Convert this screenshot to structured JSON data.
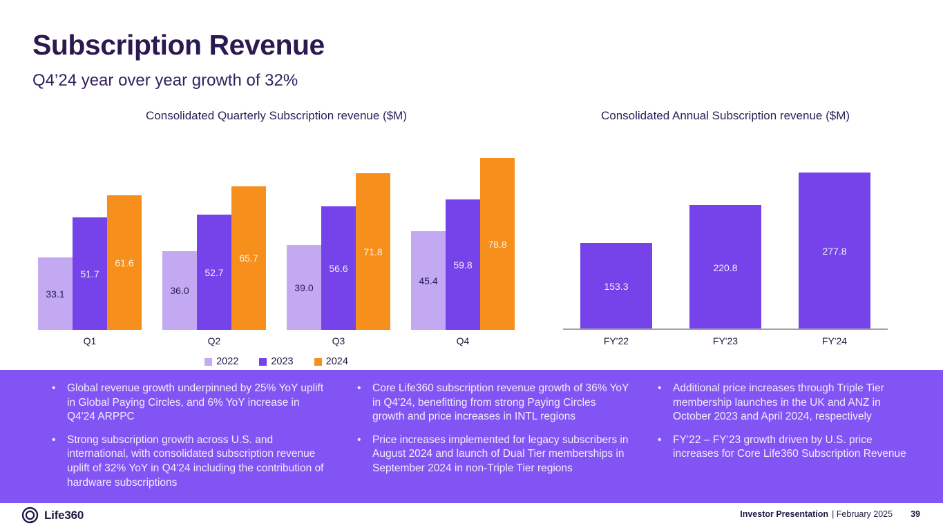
{
  "slide": {
    "title": "Subscription Revenue",
    "subtitle": "Q4’24 year over year growth of 32%"
  },
  "colors": {
    "heading_text": "#2b1a4f",
    "bar_2022": "#c3a9f1",
    "bar_2023": "#7543e9",
    "bar_2024": "#f78f1d",
    "annual_bar": "#7543e9",
    "band_background": "#8254f4",
    "band_text": "#f2ecfd",
    "axis_line": "#a3a2a8"
  },
  "chart_data": [
    {
      "type": "bar",
      "title": "Consolidated Quarterly Subscription revenue ($M)",
      "categories": [
        "Q1",
        "Q2",
        "Q3",
        "Q4"
      ],
      "series": [
        {
          "name": "2022",
          "values": [
            33.1,
            36.0,
            39.0,
            45.4
          ],
          "color": "#c3a9f1",
          "label_color": "#2b1b50"
        },
        {
          "name": "2023",
          "values": [
            51.7,
            52.7,
            56.6,
            59.8
          ],
          "color": "#7543e9",
          "label_color": "#f3edfd"
        },
        {
          "name": "2024",
          "values": [
            61.6,
            65.7,
            71.8,
            78.8
          ],
          "color": "#f78f1d",
          "label_color": "#fdf4e6"
        }
      ],
      "ylim": [
        0,
        88
      ],
      "grid": false,
      "legend_position": "bottom",
      "axis_line_visible": false
    },
    {
      "type": "bar",
      "title": "Consolidated Annual Subscription revenue ($M)",
      "categories": [
        "FY'22",
        "FY'23",
        "FY'24"
      ],
      "series": [
        {
          "name": "Annual subscription revenue",
          "values": [
            153.3,
            220.8,
            277.8
          ],
          "color": "#7543e9",
          "label_color": "#f3edfd"
        }
      ],
      "ylim": [
        0,
        338
      ],
      "grid": false,
      "legend_position": "none",
      "axis_line_visible": true
    }
  ],
  "commentary": {
    "columns": [
      {
        "bullets": [
          "Global revenue growth underpinned by 25% YoY uplift in Global Paying Circles, and 6% YoY increase in Q4'24 ARPPC",
          "Strong subscription growth across U.S. and international, with consolidated subscription revenue uplift of 32% YoY in Q4'24 including the contribution of hardware subscriptions"
        ]
      },
      {
        "bullets": [
          "Core Life360 subscription revenue growth of 36% YoY in Q4'24, benefitting from strong Paying Circles growth and price increases in INTL regions",
          "Price increases implemented for legacy subscribers in August 2024 and launch of Dual Tier memberships in September 2024 in non-Triple Tier regions"
        ]
      },
      {
        "bullets": [
          "Additional price increases through Triple Tier membership launches in the UK and ANZ in October 2023 and April 2024, respectively",
          "FY’22 – FY’23 growth driven by U.S. price increases for Core Life360 Subscription Revenue"
        ]
      }
    ]
  },
  "footer": {
    "brand": "Life360",
    "label_bold": "Investor Presentation",
    "label_rest": "| February 2025",
    "page_number": "39"
  }
}
